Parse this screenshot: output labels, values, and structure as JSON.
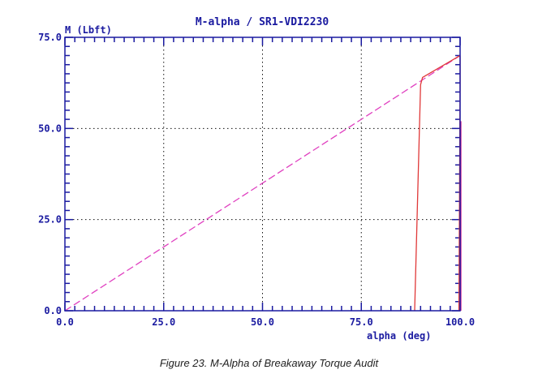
{
  "chart_data": {
    "type": "line",
    "title": "M-alpha / SR1-VDI2230",
    "xlabel": "alpha (deg)",
    "ylabel": "M (Lbft)",
    "xlim": [
      0,
      100
    ],
    "ylim": [
      0,
      75
    ],
    "x_ticks": [
      "0.0",
      "25.0",
      "50.0",
      "75.0",
      "100.0"
    ],
    "y_ticks": [
      "0.0",
      "25.0",
      "50.0",
      "75.0"
    ],
    "x_tick_values": [
      0,
      25,
      50,
      75,
      100
    ],
    "y_tick_values": [
      0,
      25,
      50,
      75
    ],
    "grid": "dotted",
    "series": [
      {
        "style": "dashed",
        "color": "#e040c0",
        "x": [
          0,
          100
        ],
        "y": [
          0,
          70
        ]
      },
      {
        "style": "solid",
        "color": "#e03838",
        "x": [
          88.5,
          90.0,
          90.5,
          100.0
        ],
        "y": [
          0,
          62,
          64,
          70
        ]
      },
      {
        "style": "solid",
        "color": "#e03838",
        "x": [
          99.7,
          100.0,
          100.0
        ],
        "y": [
          0,
          62,
          70
        ]
      },
      {
        "style": "solid",
        "color": "#cc1a8a",
        "x": [
          100.2,
          100.2
        ],
        "y": [
          0,
          52
        ]
      }
    ]
  },
  "caption": "Figure 23. M-Alpha of Breakaway Torque Audit",
  "colors": {
    "axis": "#1a1aa0",
    "grid": "#111111"
  }
}
